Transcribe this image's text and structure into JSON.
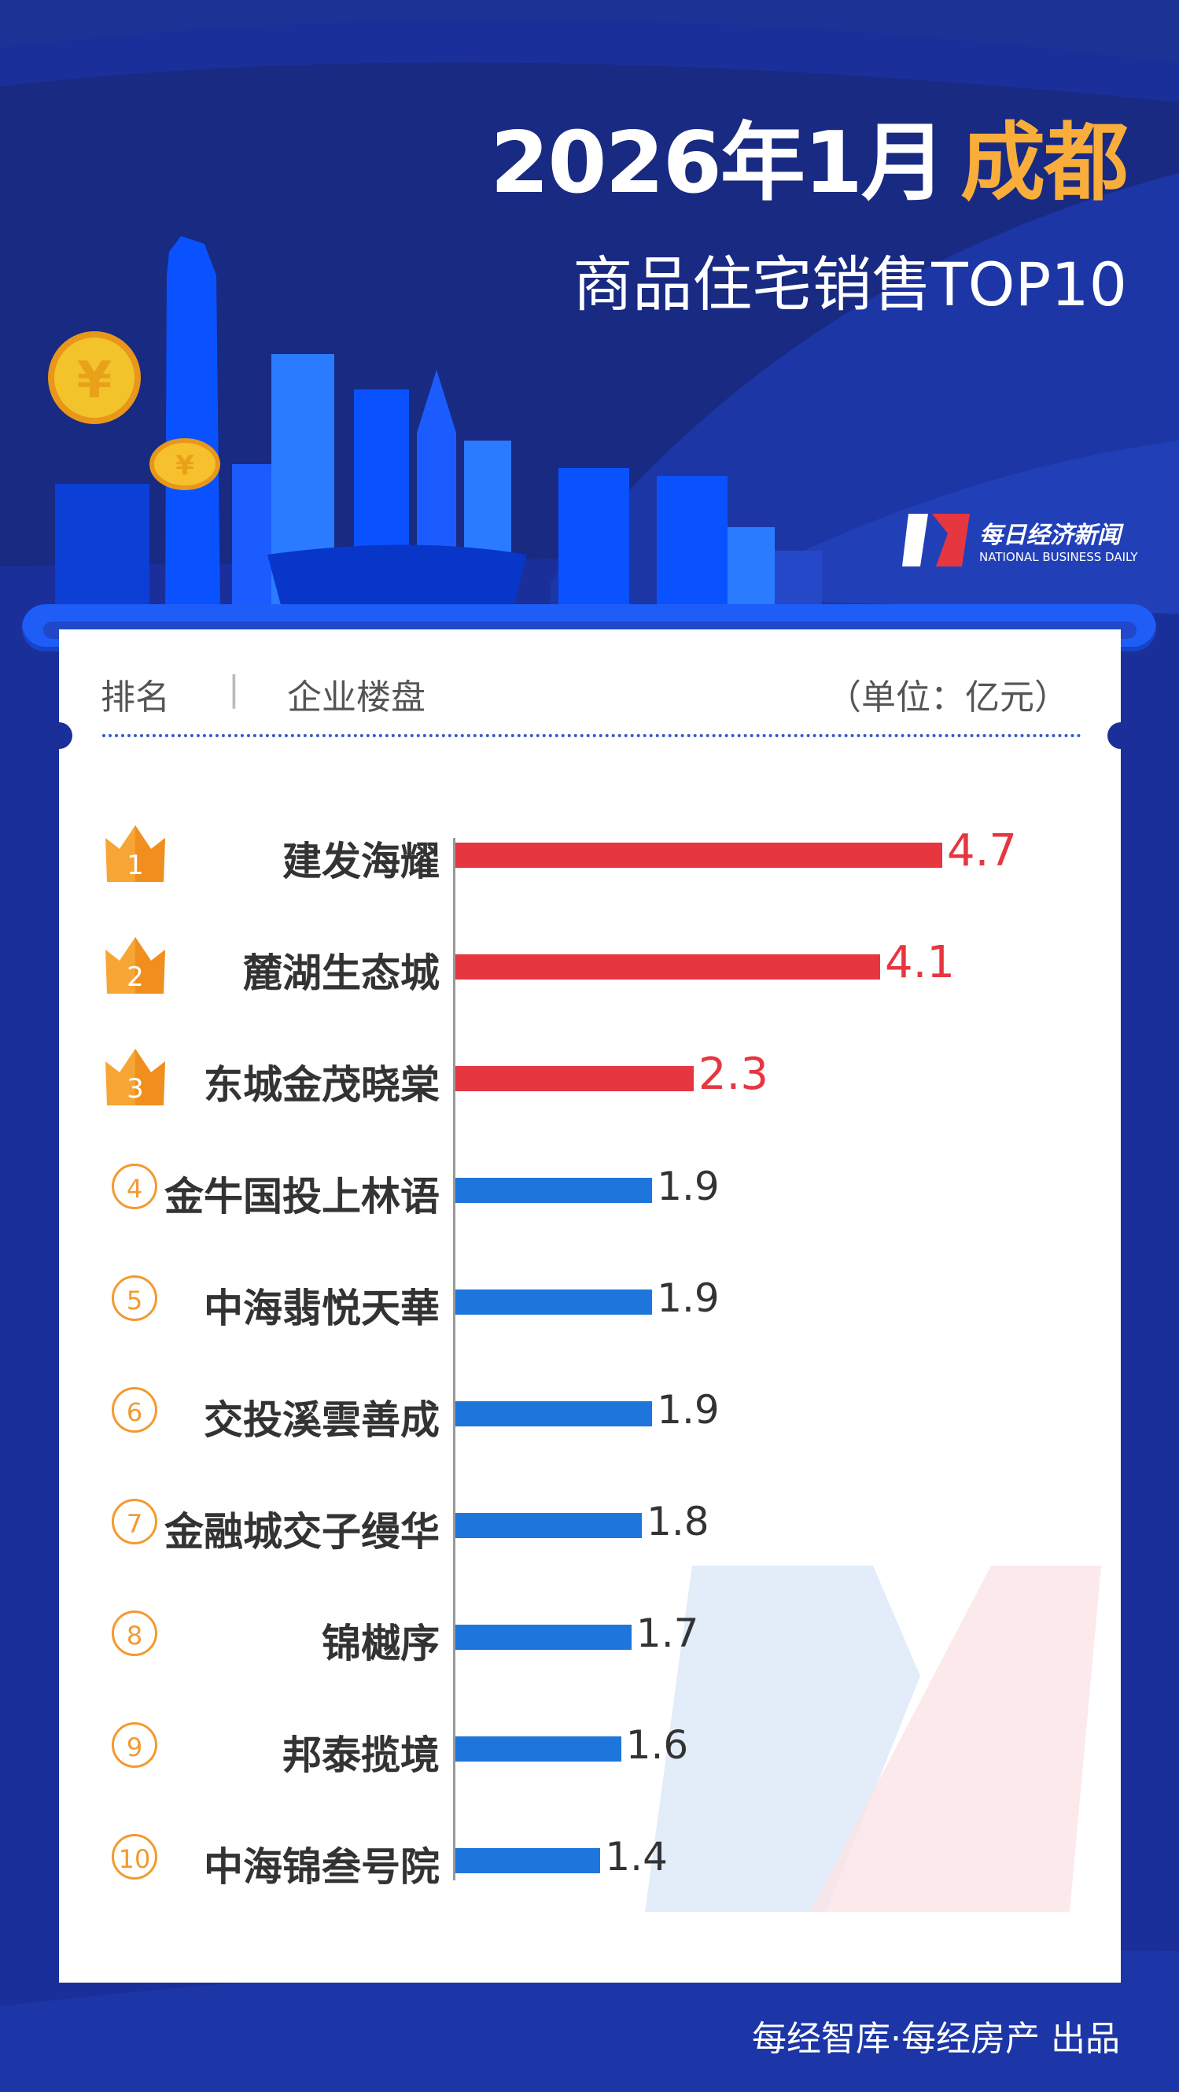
{
  "header": {
    "title_date": "2026年1月",
    "title_city": "成都",
    "subtitle": "商品住宅销售TOP10"
  },
  "logo": {
    "cn": "每日经济新闻",
    "en": "NATIONAL BUSINESS DAILY"
  },
  "table_header": {
    "rank": "排名",
    "project": "企业楼盘",
    "unit": "（单位：亿元）"
  },
  "colors": {
    "top3": "#e63640",
    "others": "#1e76dd",
    "accent": "#f9ad3b",
    "background": "#1b2f9a"
  },
  "chart_data": {
    "type": "bar",
    "orientation": "horizontal",
    "categories": [
      "建发海耀",
      "麓湖生态城",
      "东城金茂晓棠",
      "金牛国投上林语",
      "中海翡悦天華",
      "交投溪雲善成",
      "金融城交子缦华",
      "锦樾序",
      "邦泰揽境",
      "中海锦叁号院"
    ],
    "ranks": [
      "1",
      "2",
      "3",
      "4",
      "5",
      "6",
      "7",
      "8",
      "9",
      "10"
    ],
    "values": [
      4.7,
      4.1,
      2.3,
      1.9,
      1.9,
      1.9,
      1.8,
      1.7,
      1.6,
      1.4
    ],
    "value_labels": [
      "4.7",
      "4.1",
      "2.3",
      "1.9",
      "1.9",
      "1.9",
      "1.8",
      "1.7",
      "1.6",
      "1.4"
    ],
    "unit": "亿元"
  },
  "footer": {
    "credit": "每经智库·每经房产  出品"
  }
}
